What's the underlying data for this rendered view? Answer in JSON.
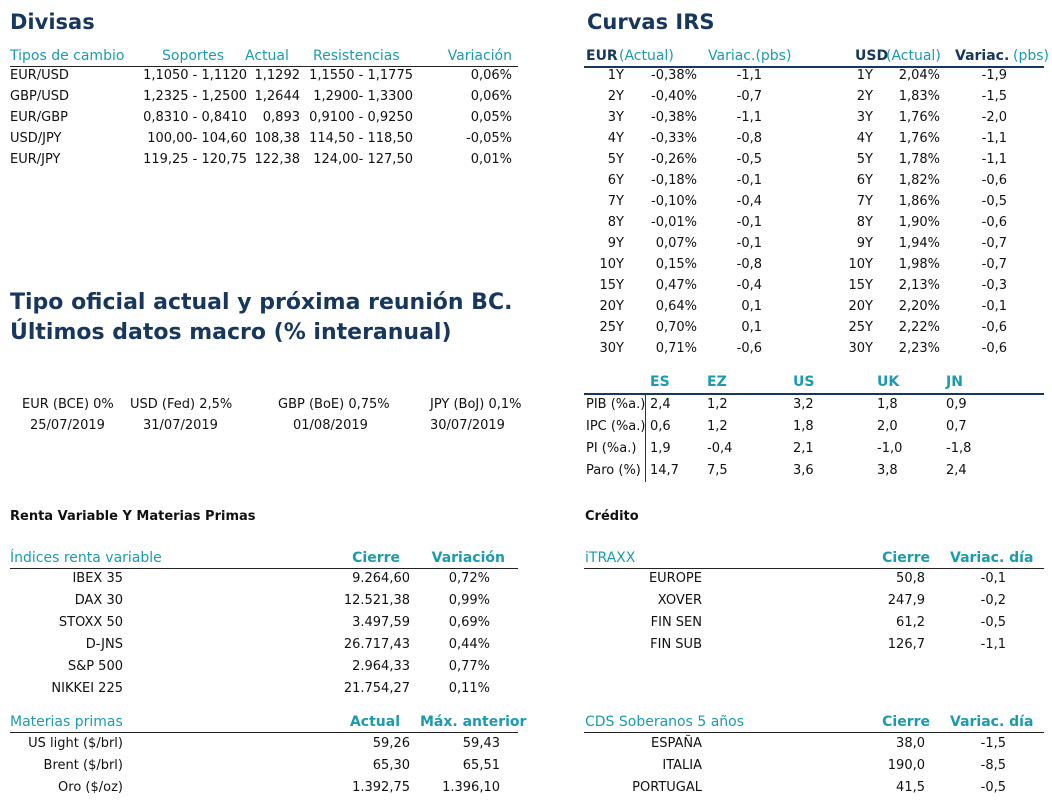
{
  "divisas": {
    "title": "Divisas",
    "headers": {
      "tipos": "Tipos de cambio",
      "soportes": "Soportes",
      "actual": "Actual",
      "resistencias": "Resistencias",
      "variacion": "Variación"
    },
    "rows": [
      {
        "pair": "EUR/USD",
        "soportes": "1,1050 - 1,1120",
        "actual": "1,1292",
        "resistencias": "1,1550 - 1,1775",
        "variacion": "0,06%"
      },
      {
        "pair": "GBP/USD",
        "soportes": "1,2325 - 1,2500",
        "actual": "1,2644",
        "resistencias": "1,2900- 1,3300",
        "variacion": "0,06%"
      },
      {
        "pair": "EUR/GBP",
        "soportes": "0,8310 - 0,8410",
        "actual": "0,893",
        "resistencias": "0,9100 - 0,9250",
        "variacion": "0,05%"
      },
      {
        "pair": "USD/JPY",
        "soportes": "100,00- 104,60",
        "actual": "108,38",
        "resistencias": "114,50 - 118,50",
        "variacion": "-0,05%"
      },
      {
        "pair": "EUR/JPY",
        "soportes": "119,25 - 120,75",
        "actual": "122,38",
        "resistencias": "124,00- 127,50",
        "variacion": "0,01%"
      }
    ]
  },
  "irs": {
    "title": "Curvas IRS",
    "eur_label": "EUR",
    "eur_actual": "(Actual)",
    "eur_variac": "Variac.(pbs)",
    "usd_label": "USD",
    "usd_actual": "(Actual)",
    "usd_variac": "Variac.",
    "usd_variac_unit": "(pbs)",
    "rows": [
      {
        "t": "1Y",
        "eur": "-0,38%",
        "ev": "-1,1",
        "t2": "1Y",
        "usd": "2,04%",
        "uv": "-1,9"
      },
      {
        "t": "2Y",
        "eur": "-0,40%",
        "ev": "-0,7",
        "t2": "2Y",
        "usd": "1,83%",
        "uv": "-1,5"
      },
      {
        "t": "3Y",
        "eur": "-0,38%",
        "ev": "-1,1",
        "t2": "3Y",
        "usd": "1,76%",
        "uv": "-2,0"
      },
      {
        "t": "4Y",
        "eur": "-0,33%",
        "ev": "-0,8",
        "t2": "4Y",
        "usd": "1,76%",
        "uv": "-1,1"
      },
      {
        "t": "5Y",
        "eur": "-0,26%",
        "ev": "-0,5",
        "t2": "5Y",
        "usd": "1,78%",
        "uv": "-1,1"
      },
      {
        "t": "6Y",
        "eur": "-0,18%",
        "ev": "-0,1",
        "t2": "6Y",
        "usd": "1,82%",
        "uv": "-0,6"
      },
      {
        "t": "7Y",
        "eur": "-0,10%",
        "ev": "-0,4",
        "t2": "7Y",
        "usd": "1,86%",
        "uv": "-0,5"
      },
      {
        "t": "8Y",
        "eur": "-0,01%",
        "ev": "-0,1",
        "t2": "8Y",
        "usd": "1,90%",
        "uv": "-0,6"
      },
      {
        "t": "9Y",
        "eur": "0,07%",
        "ev": "-0,1",
        "t2": "9Y",
        "usd": "1,94%",
        "uv": "-0,7"
      },
      {
        "t": "10Y",
        "eur": "0,15%",
        "ev": "-0,8",
        "t2": "10Y",
        "usd": "1,98%",
        "uv": "-0,7"
      },
      {
        "t": "15Y",
        "eur": "0,47%",
        "ev": "-0,4",
        "t2": "15Y",
        "usd": "2,13%",
        "uv": "-0,3"
      },
      {
        "t": "20Y",
        "eur": "0,64%",
        "ev": "0,1",
        "t2": "20Y",
        "usd": "2,20%",
        "uv": "-0,1"
      },
      {
        "t": "25Y",
        "eur": "0,70%",
        "ev": "0,1",
        "t2": "25Y",
        "usd": "2,22%",
        "uv": "-0,6"
      },
      {
        "t": "30Y",
        "eur": "0,71%",
        "ev": "-0,6",
        "t2": "30Y",
        "usd": "2,23%",
        "uv": "-0,6"
      }
    ]
  },
  "tipo_oficial": {
    "title_line1": "Tipo oficial actual y próxima reunión BC.",
    "title_line2": "Últimos datos macro (% interanual)",
    "items": [
      {
        "rate": "EUR (BCE) 0%",
        "date": "25/07/2019"
      },
      {
        "rate": "USD (Fed) 2,5%",
        "date": "31/07/2019"
      },
      {
        "rate": "GBP (BoE) 0,75%",
        "date": "01/08/2019"
      },
      {
        "rate": "JPY (BoJ) 0,1%",
        "date": "30/07/2019"
      }
    ]
  },
  "macro": {
    "cols": [
      "ES",
      "EZ",
      "US",
      "UK",
      "JN"
    ],
    "rows": [
      {
        "label": "PIB (%a.)",
        "values": [
          "2,4",
          "1,2",
          "3,2",
          "1,8",
          "0,9"
        ]
      },
      {
        "label": "IPC (%a.)",
        "values": [
          "0,6",
          "1,2",
          "1,8",
          "2,0",
          "0,7"
        ]
      },
      {
        "label": "PI (%a.)",
        "values": [
          "1,9",
          "-0,4",
          "2,1",
          "-1,0",
          "-1,8"
        ]
      },
      {
        "label": "Paro (%)",
        "values": [
          "14,7",
          "7,5",
          "3,6",
          "3,8",
          "2,4"
        ]
      }
    ]
  },
  "renta": {
    "title": "Renta Variable Y Materias Primas",
    "indices_header": {
      "label": "Índices renta variable",
      "cierre": "Cierre",
      "variacion": "Variación"
    },
    "indices": [
      {
        "name": "IBEX 35",
        "cierre": "9.264,60",
        "variacion": "0,72%"
      },
      {
        "name": "DAX 30",
        "cierre": "12.521,38",
        "variacion": "0,99%"
      },
      {
        "name": "STOXX 50",
        "cierre": "3.497,59",
        "variacion": "0,69%"
      },
      {
        "name": "D-JNS",
        "cierre": "26.717,43",
        "variacion": "0,44%"
      },
      {
        "name": "S&P 500",
        "cierre": "2.964,33",
        "variacion": "0,77%"
      },
      {
        "name": "NIKKEI 225",
        "cierre": "21.754,27",
        "variacion": "0,11%"
      }
    ],
    "materias_header": {
      "label": "Materias primas",
      "actual": "Actual",
      "max": "Máx. anterior"
    },
    "materias": [
      {
        "name": "US light ($/brl)",
        "actual": "59,26",
        "max": "59,43"
      },
      {
        "name": "Brent ($/brl)",
        "actual": "65,30",
        "max": "65,51"
      },
      {
        "name": "Oro ($/oz)",
        "actual": "1.392,75",
        "max": "1.396,10"
      }
    ]
  },
  "credito": {
    "title": "Crédito",
    "itraxx_header": {
      "label": "iTRAXX",
      "cierre": "Cierre",
      "variac": "Variac. día"
    },
    "itraxx": [
      {
        "name": "EUROPE",
        "cierre": "50,8",
        "variac": "-0,1"
      },
      {
        "name": "XOVER",
        "cierre": "247,9",
        "variac": "-0,2"
      },
      {
        "name": "FIN SEN",
        "cierre": "61,2",
        "variac": "-0,5"
      },
      {
        "name": "FIN SUB",
        "cierre": "126,7",
        "variac": "-1,1"
      }
    ],
    "cds_header": {
      "label": "CDS Soberanos 5 años",
      "cierre": "Cierre",
      "variac": "Variac. día"
    },
    "cds": [
      {
        "name": "ESPAÑA",
        "cierre": "38,0",
        "variac": "-1,5"
      },
      {
        "name": "ITALIA",
        "cierre": "190,0",
        "variac": "-8,5"
      },
      {
        "name": "PORTUGAL",
        "cierre": "41,5",
        "variac": "-0,5"
      }
    ]
  }
}
